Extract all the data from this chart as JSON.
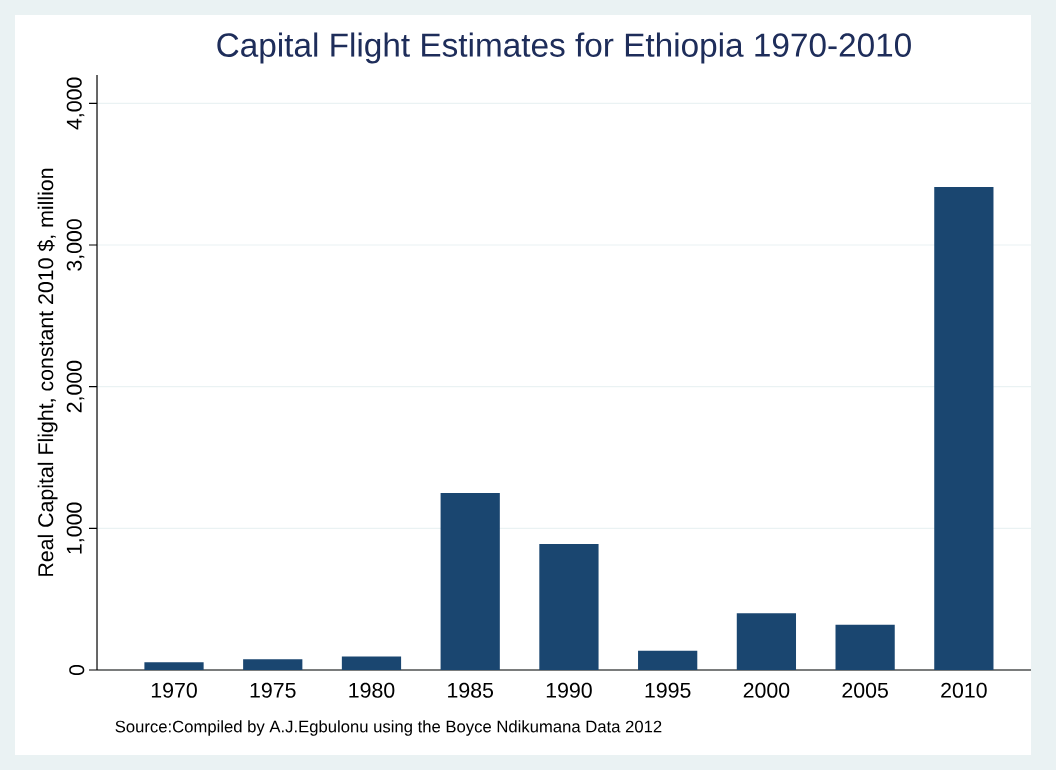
{
  "chart_data": {
    "type": "bar",
    "title": "Capital Flight Estimates for Ethiopia 1970-2010",
    "ylabel": "Real Capital Flight, constant 2010 $, million",
    "categories": [
      "1970",
      "1975",
      "1980",
      "1985",
      "1990",
      "1995",
      "2000",
      "2005",
      "2010"
    ],
    "values": [
      55,
      75,
      95,
      1250,
      890,
      135,
      400,
      320,
      3410
    ],
    "color": "#1a4670",
    "ylim": [
      0,
      4200
    ],
    "yticks": [
      0,
      {
        "value": 1000,
        "label": "1,000"
      },
      {
        "value": 2000,
        "label": "2,000"
      },
      {
        "value": 3000,
        "label": "3,000"
      },
      {
        "value": 4000,
        "label": "4,000"
      }
    ],
    "grid": "y",
    "annotations": [
      "Source:Compiled by A.J.Egbulonu using the Boyce Ndikumana Data 2012"
    ]
  }
}
